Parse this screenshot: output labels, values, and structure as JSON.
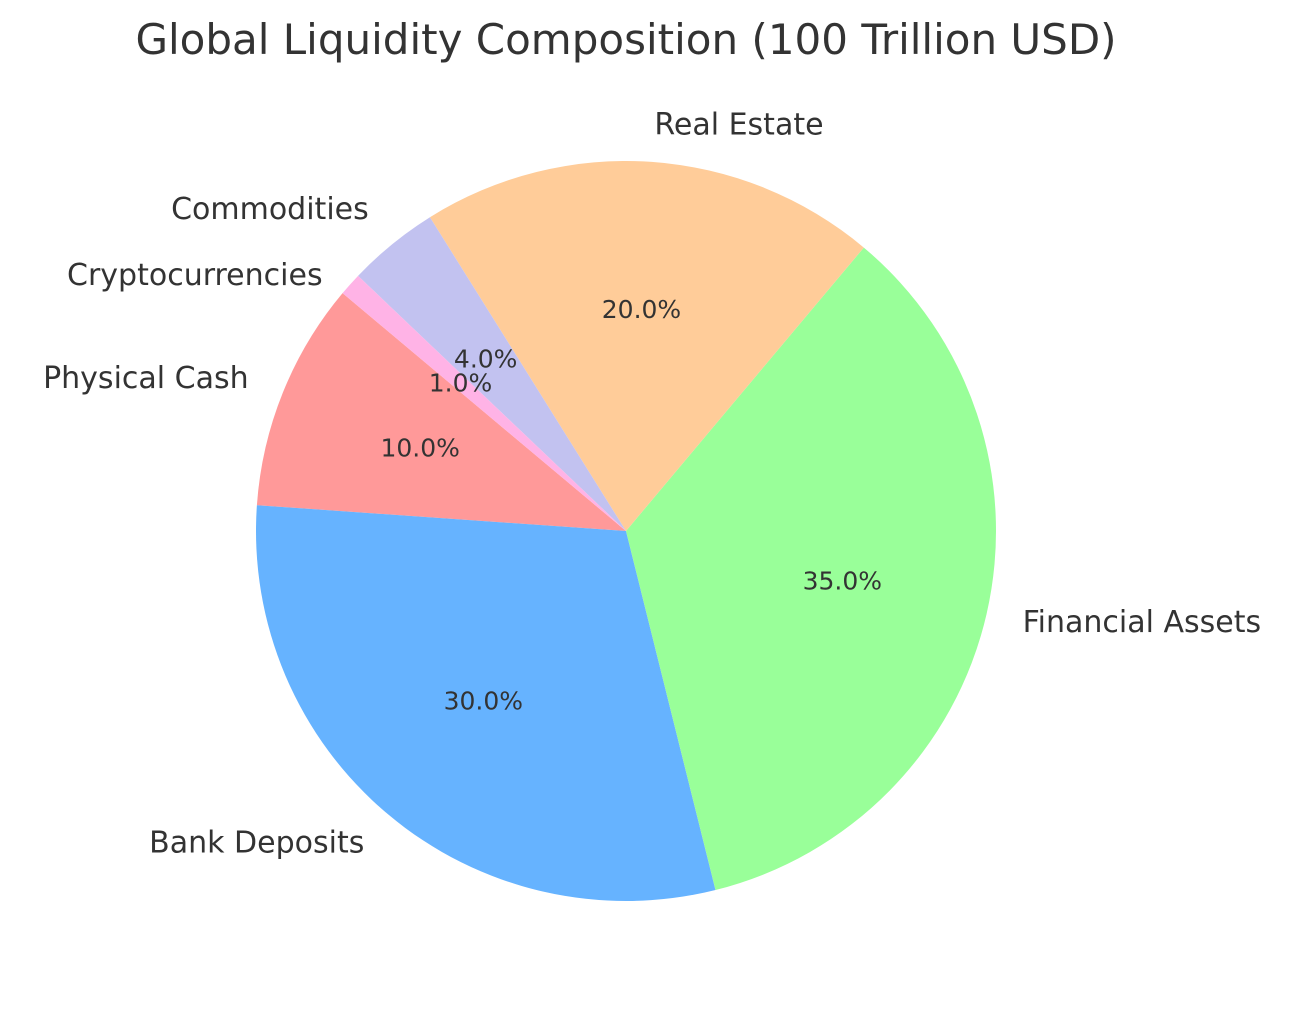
{
  "chart_data": {
    "type": "pie",
    "title": "Global Liquidity Composition (100 Trillion USD)",
    "categories": [
      "Physical Cash",
      "Bank Deposits",
      "Financial Assets",
      "Real Estate",
      "Commodities",
      "Cryptocurrencies"
    ],
    "values": [
      10,
      30,
      35,
      20,
      4,
      1
    ],
    "percent_labels": [
      "10.0%",
      "30.0%",
      "35.0%",
      "20.0%",
      "4.0%",
      "1.0%"
    ],
    "colors": [
      "#ff9999",
      "#66b3ff",
      "#99ff99",
      "#ffcc99",
      "#c2c2f0",
      "#ffb3e6"
    ],
    "start_angle_deg": 140,
    "direction": "counterclockwise",
    "legend": "none"
  }
}
